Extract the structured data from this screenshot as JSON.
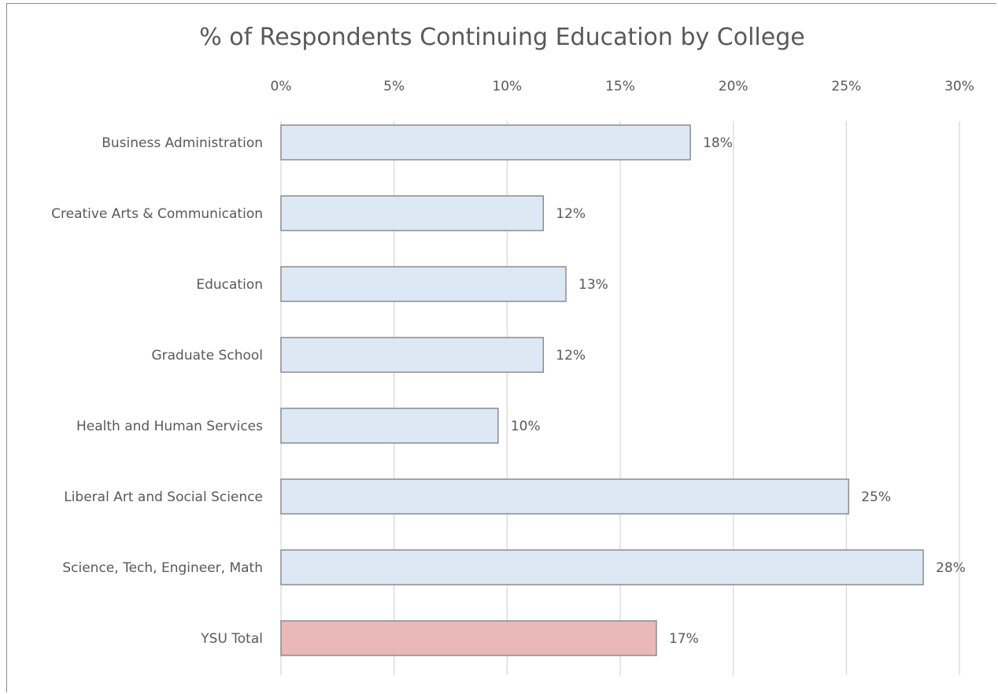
{
  "chart_data": {
    "type": "bar",
    "orientation": "horizontal",
    "title": "% of Respondents Continuing Education by College",
    "xlabel": "",
    "ylabel": "",
    "xlim": [
      0,
      30
    ],
    "x_ticks": [
      "0%",
      "5%",
      "10%",
      "15%",
      "20%",
      "25%",
      "30%"
    ],
    "x_tick_values": [
      0,
      5,
      10,
      15,
      20,
      25,
      30
    ],
    "x_axis_position": "top",
    "grid": true,
    "categories": [
      "Business Administration",
      "Creative Arts & Communication",
      "Education",
      "Graduate School",
      "Health and Human Services",
      "Liberal Art and Social Science",
      "Science, Tech, Engineer, Math",
      "YSU Total"
    ],
    "values": [
      18.1,
      11.6,
      12.6,
      11.6,
      9.6,
      25.1,
      28.4,
      16.6
    ],
    "data_labels": [
      "18%",
      "12%",
      "13%",
      "12%",
      "10%",
      "25%",
      "28%",
      "17%"
    ],
    "colors": {
      "default_bar": "#dde8f5",
      "highlight_bar": "#e8b0b0",
      "bar_border": "#8c8c8c",
      "grid": "#d9d9d9",
      "text": "#595959"
    },
    "highlight_category": "YSU Total"
  }
}
